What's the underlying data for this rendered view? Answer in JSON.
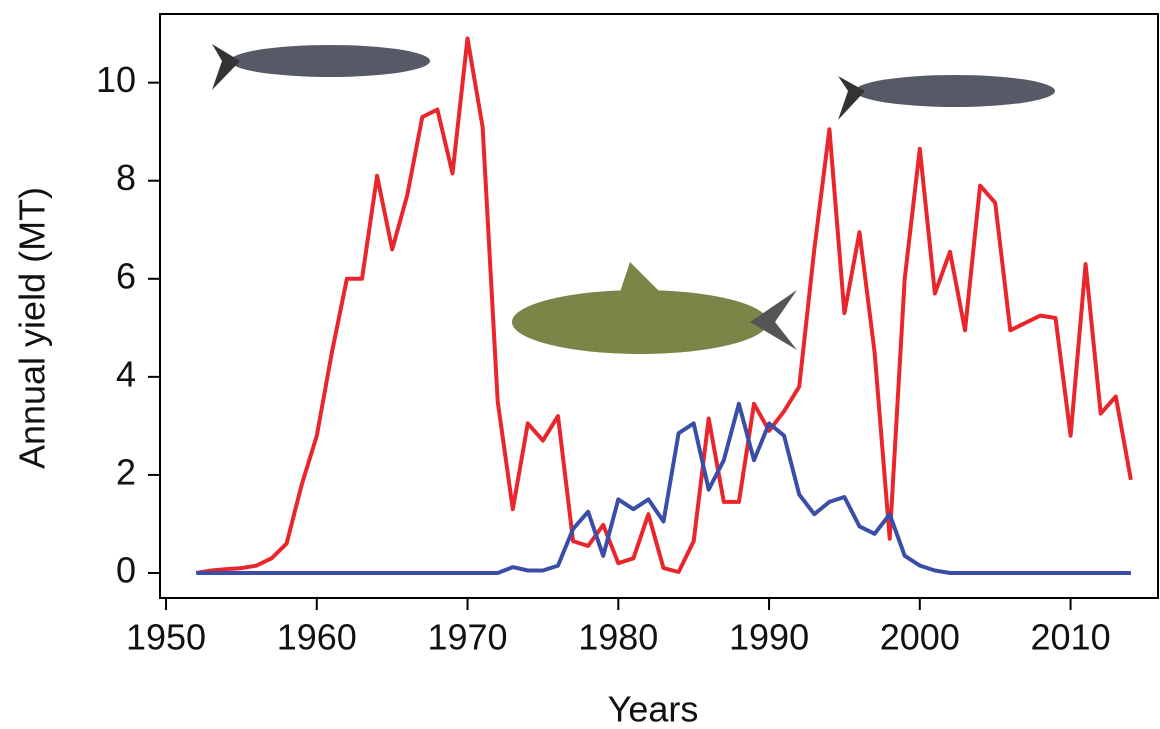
{
  "chart_data": {
    "type": "line",
    "x_label": "Years",
    "y_label": "Annual yield (MT)",
    "x": [
      1952,
      1953,
      1954,
      1955,
      1956,
      1957,
      1958,
      1959,
      1960,
      1961,
      1962,
      1963,
      1964,
      1965,
      1966,
      1967,
      1968,
      1969,
      1970,
      1971,
      1972,
      1973,
      1974,
      1975,
      1976,
      1977,
      1978,
      1979,
      1980,
      1981,
      1982,
      1983,
      1984,
      1985,
      1986,
      1987,
      1988,
      1989,
      1990,
      1991,
      1992,
      1993,
      1994,
      1995,
      1996,
      1997,
      1998,
      1999,
      2000,
      2001,
      2002,
      2003,
      2004,
      2005,
      2006,
      2007,
      2008,
      2009,
      2010,
      2011,
      2012,
      2013,
      2014
    ],
    "series": [
      {
        "color": "#e8262b",
        "values": [
          0,
          0.05,
          0.08,
          0.1,
          0.15,
          0.3,
          0.6,
          1.8,
          2.8,
          4.5,
          6.0,
          6.0,
          8.1,
          6.6,
          7.7,
          9.3,
          9.45,
          8.15,
          10.9,
          9.1,
          3.5,
          1.3,
          3.05,
          2.7,
          3.2,
          0.65,
          0.55,
          0.98,
          0.2,
          0.3,
          1.2,
          0.1,
          0.02,
          0.65,
          3.15,
          1.45,
          1.45,
          3.45,
          2.9,
          3.3,
          3.8,
          6.6,
          9.05,
          5.3,
          6.95,
          4.5,
          0.7,
          6.0,
          8.65,
          5.7,
          6.55,
          4.95,
          7.9,
          7.55,
          4.95,
          5.1,
          5.25,
          5.2,
          2.8,
          6.3,
          3.25,
          3.6,
          1.9
        ]
      },
      {
        "color": "#3a4ea8",
        "values": [
          0,
          0,
          0,
          0,
          0,
          0,
          0,
          0,
          0,
          0,
          0,
          0,
          0,
          0,
          0,
          0,
          0,
          0,
          0,
          0,
          0,
          0.12,
          0.05,
          0.05,
          0.15,
          0.9,
          1.25,
          0.35,
          1.5,
          1.3,
          1.5,
          1.05,
          2.85,
          3.05,
          1.7,
          2.3,
          3.45,
          2.3,
          3.05,
          2.8,
          1.6,
          1.2,
          1.45,
          1.55,
          0.95,
          0.8,
          1.2,
          0.35,
          0.15,
          0.05,
          0,
          0,
          0,
          0,
          0,
          0,
          0,
          0,
          0,
          0,
          0,
          0,
          0
        ]
      }
    ],
    "xlim": [
      1949.6,
      2015.8
    ],
    "ylim": [
      -0.51,
      11.4
    ],
    "xticks": [
      1950,
      1960,
      1970,
      1980,
      1990,
      2000,
      2010
    ],
    "yticks": [
      0,
      2,
      4,
      6,
      8,
      10
    ]
  }
}
